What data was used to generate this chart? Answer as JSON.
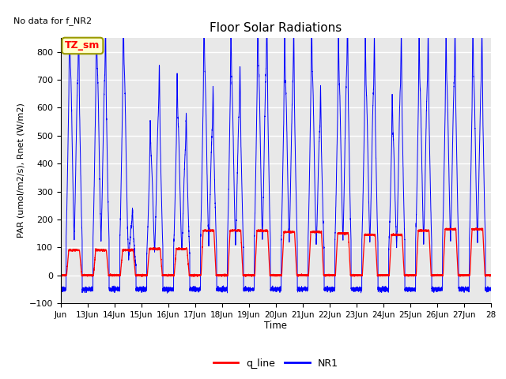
{
  "title": "Floor Solar Radiations",
  "top_left_text": "No data for f_NR2",
  "xlabel": "Time",
  "ylabel": "PAR (umol/m2/s), Rnet (W/m2)",
  "ylim": [
    -100,
    850
  ],
  "yticks": [
    -100,
    0,
    100,
    200,
    300,
    400,
    500,
    600,
    700,
    800
  ],
  "xtick_labels": [
    "Jun",
    "13Jun",
    "14Jun",
    "15Jun",
    "16Jun",
    "17Jun",
    "18Jun",
    "19Jun",
    "20Jun",
    "21Jun",
    "22Jun",
    "23Jun",
    "24Jun",
    "25Jun",
    "26Jun",
    "27Jun",
    "28"
  ],
  "legend_labels": [
    "q_line",
    "NR1"
  ],
  "legend_colors": [
    "red",
    "blue"
  ],
  "box_label": "TZ_sm",
  "box_facecolor": "#ffffcc",
  "box_edgecolor": "#999900",
  "background_color": "#e8e8e8",
  "grid_color": "white",
  "NR1_color": "blue",
  "q_line_color": "red",
  "NR1_peaks": [
    755,
    725,
    750,
    715,
    750,
    185,
    435,
    595,
    565,
    455,
    745,
    530,
    705,
    590,
    750,
    740,
    695,
    700,
    735,
    530,
    700,
    740,
    680,
    675,
    510,
    685,
    690,
    690,
    700,
    700,
    720,
    695
  ],
  "q_line_peaks": [
    90,
    90,
    90,
    90,
    90,
    55,
    95,
    95,
    95,
    95,
    160,
    115,
    160,
    115,
    160,
    160,
    155,
    155,
    155,
    155,
    150,
    150,
    145,
    145,
    145,
    160,
    160,
    160,
    165,
    165,
    165,
    165
  ],
  "days": 16,
  "points_per_day": 480
}
